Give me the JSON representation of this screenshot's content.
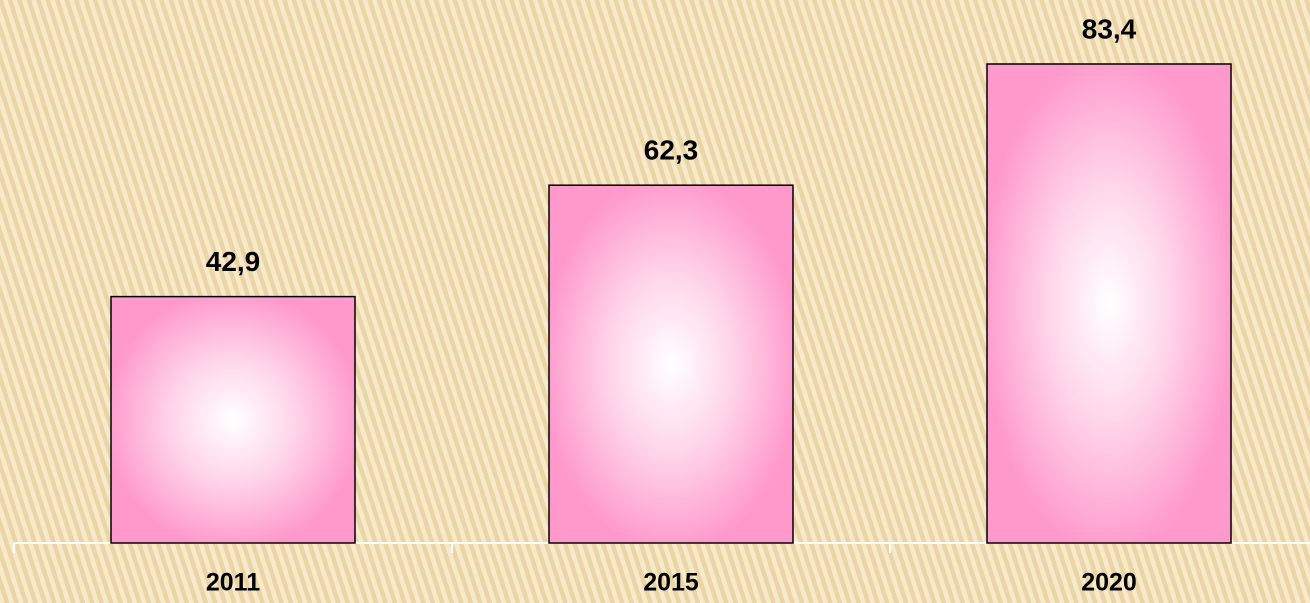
{
  "chart_data": {
    "type": "bar",
    "categories": [
      "2011",
      "2015",
      "2020"
    ],
    "values": [
      42.9,
      62.3,
      83.4
    ],
    "value_labels": [
      "42,9",
      "62,3",
      "83,4"
    ],
    "color": "#ff99cc"
  }
}
